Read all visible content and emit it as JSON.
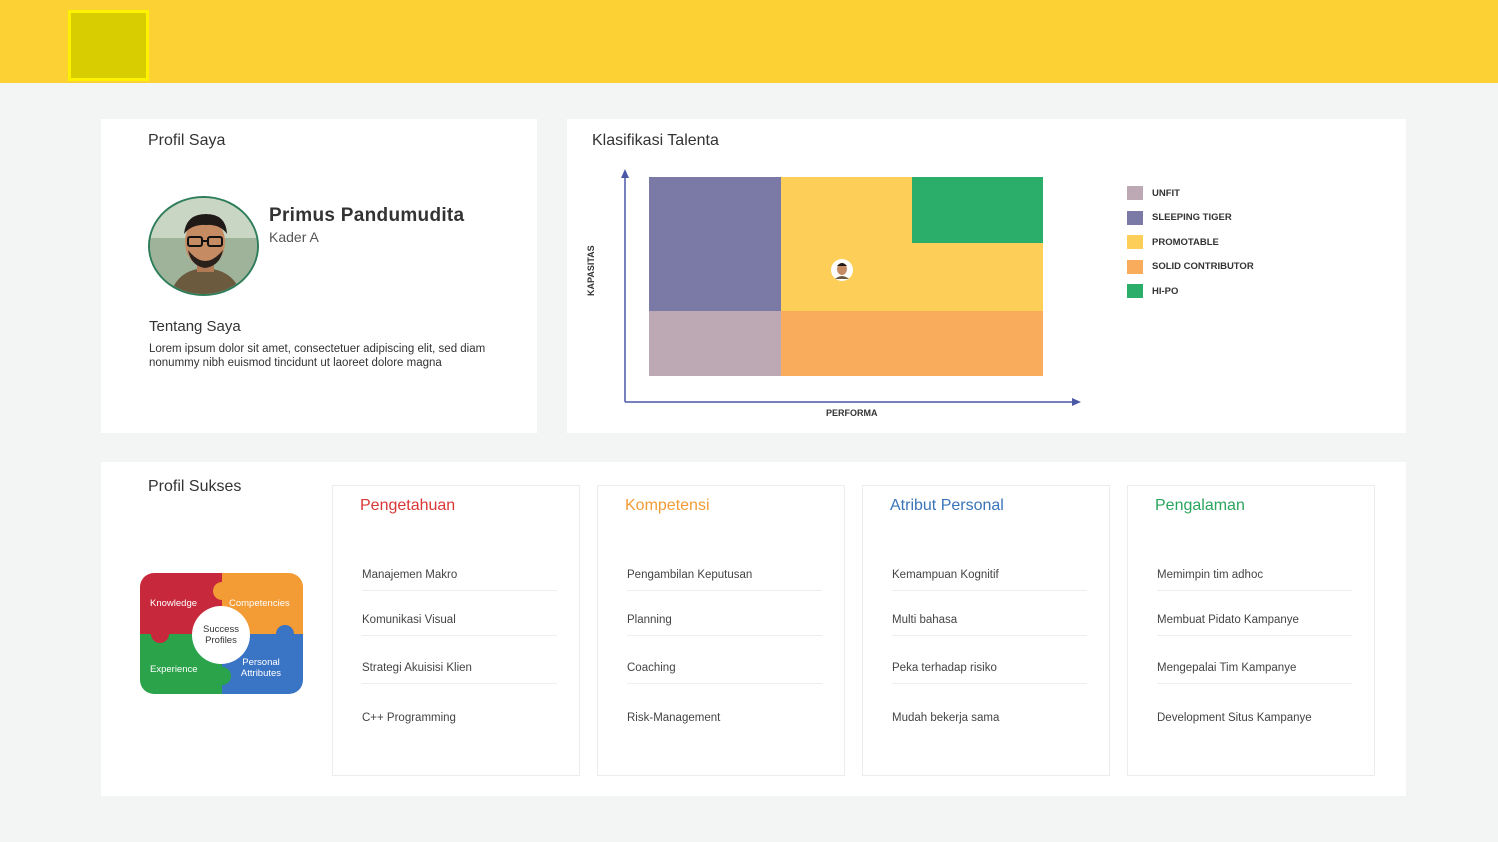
{
  "header": {
    "logo": "logo-placeholder"
  },
  "profile": {
    "title": "Profil Saya",
    "name": "Primus Pandumudita",
    "role": "Kader A",
    "about_title": "Tentang Saya",
    "about_text": "Lorem ipsum dolor sit amet, consectetuer adipiscing elit, sed diam nonummy nibh euismod tincidunt ut laoreet dolore magna",
    "avatar_icon": "person-photo"
  },
  "talent": {
    "title": "Klasifikasi Talenta",
    "x_label": "PERFORMA",
    "y_label": "KAPASITAS",
    "legend": [
      {
        "label": "UNFIT",
        "color": "#bca9b3"
      },
      {
        "label": "SLEEPING TIGER",
        "color": "#7b79a5"
      },
      {
        "label": "PROMOTABLE",
        "color": "#fdcf58"
      },
      {
        "label": "SOLID CONTRIBUTOR",
        "color": "#f8ac5c"
      },
      {
        "label": "HI-PO",
        "color": "#2aae6a"
      }
    ]
  },
  "success": {
    "title": "Profil Sukses",
    "puzzle": {
      "knowledge": "Knowledge",
      "competencies": "Competencies",
      "experience": "Experience",
      "personal": "Personal Attributes",
      "center": "Success Profiles"
    },
    "columns": [
      {
        "title": "Pengetahuan",
        "color": "#d93636",
        "items": [
          "Manajemen Makro",
          "Komunikasi Visual",
          "Strategi Akuisisi Klien",
          "C++ Programming"
        ]
      },
      {
        "title": "Kompetensi",
        "color": "#f39b34",
        "items": [
          "Pengambilan Keputusan",
          "Planning",
          "Coaching",
          "Risk-Management"
        ]
      },
      {
        "title": "Atribut Personal",
        "color": "#3a74b8",
        "items": [
          "Kemampuan Kognitif",
          "Multi bahasa",
          "Peka terhadap risiko",
          "Mudah bekerja sama"
        ]
      },
      {
        "title": "Pengalaman",
        "color": "#2aa55d",
        "items": [
          "Memimpin tim adhoc",
          "Membuat Pidato Kampanye",
          "Mengepalai Tim Kampanye",
          "Development Situs Kampanye"
        ]
      }
    ]
  }
}
